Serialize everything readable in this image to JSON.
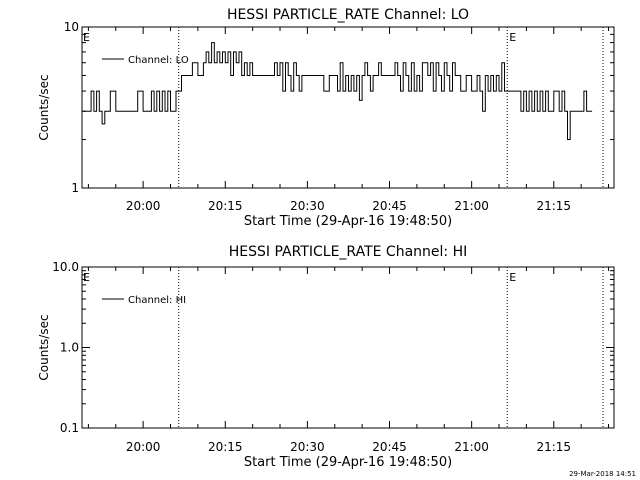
{
  "chart_data": [
    {
      "type": "line",
      "title": "HESSI PARTICLE_RATE Channel: LO",
      "xlabel": "Start Time (29-Apr-16 19:48:50)",
      "ylabel": "Counts/sec",
      "y_scale": "log",
      "ylim": [
        1,
        10
      ],
      "y_ticks": [
        {
          "v": 1,
          "label": "1"
        },
        {
          "v": 10,
          "label": "10"
        }
      ],
      "xlim": [
        "19:48:50",
        "21:26:00"
      ],
      "x_ticks": [
        "20:00",
        "20:15",
        "20:30",
        "20:45",
        "21:00",
        "21:15"
      ],
      "legend": "top-left",
      "markers": [
        {
          "time": "20:06:30",
          "label": ""
        },
        {
          "time": "21:06:30",
          "label": "E"
        },
        {
          "time": "21:24:00",
          "label": ""
        }
      ],
      "left_marker_label": "E",
      "series": [
        {
          "name": "Channel: LO",
          "color": "#000000",
          "times": [
            "19:48:50",
            "19:50:00",
            "19:50:30",
            "19:51:00",
            "19:51:30",
            "19:52:00",
            "19:52:30",
            "19:53:00",
            "19:53:30",
            "19:54:00",
            "19:55:00",
            "19:56:00",
            "19:57:00",
            "19:57:30",
            "19:58:00",
            "19:59:00",
            "20:00:00",
            "20:01:00",
            "20:01:30",
            "20:02:00",
            "20:02:30",
            "20:03:00",
            "20:03:30",
            "20:04:00",
            "20:04:30",
            "20:05:00",
            "20:06:00",
            "20:07:00",
            "20:08:00",
            "20:09:00",
            "20:10:00",
            "20:11:00",
            "20:11:30",
            "20:12:00",
            "20:12:30",
            "20:13:00",
            "20:13:30",
            "20:14:00",
            "20:14:30",
            "20:15:00",
            "20:15:30",
            "20:16:00",
            "20:16:30",
            "20:17:00",
            "20:17:30",
            "20:18:00",
            "20:18:30",
            "20:19:00",
            "20:19:30",
            "20:20:00",
            "20:21:00",
            "20:22:00",
            "20:23:00",
            "20:24:00",
            "20:24:30",
            "20:25:00",
            "20:25:30",
            "20:26:00",
            "20:26:30",
            "20:27:00",
            "20:27:30",
            "20:28:00",
            "20:28:30",
            "20:29:00",
            "20:30:00",
            "20:31:00",
            "20:32:00",
            "20:33:00",
            "20:34:00",
            "20:35:00",
            "20:35:30",
            "20:36:00",
            "20:36:30",
            "20:37:00",
            "20:37:30",
            "20:38:00",
            "20:38:30",
            "20:39:00",
            "20:39:30",
            "20:40:00",
            "20:40:30",
            "20:41:00",
            "20:41:30",
            "20:42:00",
            "20:42:30",
            "20:43:00",
            "20:43:30",
            "20:44:00",
            "20:45:00",
            "20:46:00",
            "20:46:30",
            "20:47:00",
            "20:47:30",
            "20:48:00",
            "20:48:30",
            "20:49:00",
            "20:49:30",
            "20:50:00",
            "20:50:30",
            "20:51:00",
            "20:52:00",
            "20:52:30",
            "20:53:00",
            "20:53:30",
            "20:54:00",
            "20:54:30",
            "20:55:00",
            "20:55:30",
            "20:56:00",
            "20:56:30",
            "20:57:00",
            "20:57:30",
            "20:58:00",
            "20:59:00",
            "21:00:00",
            "21:01:00",
            "21:01:30",
            "21:02:00",
            "21:02:30",
            "21:03:00",
            "21:03:30",
            "21:04:00",
            "21:04:30",
            "21:05:00",
            "21:05:30",
            "21:06:00",
            "21:07:00",
            "21:08:00",
            "21:09:00",
            "21:09:30",
            "21:10:00",
            "21:10:30",
            "21:11:00",
            "21:11:30",
            "21:12:00",
            "21:12:30",
            "21:13:00",
            "21:13:30",
            "21:14:00",
            "21:14:30",
            "21:15:00",
            "21:16:00",
            "21:16:30",
            "21:17:00",
            "21:17:30",
            "21:18:00",
            "21:19:00",
            "21:20:00",
            "21:20:30",
            "21:21:00",
            "21:22:00"
          ],
          "values": [
            3,
            3,
            4,
            3,
            4,
            3,
            2.5,
            3,
            3,
            4,
            3,
            3,
            3,
            3,
            3,
            4,
            3,
            3,
            4,
            3,
            4,
            3,
            4,
            3,
            4,
            3,
            4,
            5,
            5,
            6,
            5,
            6,
            7,
            6,
            8,
            6,
            7,
            6,
            7,
            6,
            7,
            5,
            7,
            6,
            7,
            5,
            6,
            5,
            6,
            5,
            5,
            5,
            5,
            6,
            5,
            6,
            4,
            6,
            5,
            4,
            6,
            5,
            4,
            5,
            5,
            5,
            5,
            4,
            5,
            5,
            4,
            6,
            4,
            5,
            4,
            5,
            4,
            5,
            3.5,
            5,
            6,
            5,
            4,
            5,
            5,
            6,
            5,
            5,
            5,
            6,
            5,
            4,
            6,
            5,
            4,
            6,
            4,
            5,
            4,
            6,
            5,
            6,
            4,
            6,
            5,
            4,
            6,
            5,
            4,
            6,
            5,
            5,
            4,
            5,
            4,
            5,
            4,
            3,
            5,
            4,
            5,
            4,
            5,
            4,
            6,
            4,
            4,
            4,
            3,
            4,
            3,
            4,
            3,
            4,
            3,
            4,
            3,
            4,
            3,
            3,
            4,
            3,
            4,
            3,
            2,
            3,
            3,
            3,
            4,
            3,
            3
          ]
        }
      ]
    },
    {
      "type": "line",
      "title": "HESSI PARTICLE_RATE Channel: HI",
      "xlabel": "Start Time (29-Apr-16 19:48:50)",
      "ylabel": "Counts/sec",
      "y_scale": "log",
      "ylim": [
        0.1,
        10
      ],
      "y_ticks": [
        {
          "v": 0.1,
          "label": "0.1"
        },
        {
          "v": 1,
          "label": "1.0"
        },
        {
          "v": 10,
          "label": "10.0"
        }
      ],
      "xlim": [
        "19:48:50",
        "21:26:00"
      ],
      "x_ticks": [
        "20:00",
        "20:15",
        "20:30",
        "20:45",
        "21:00",
        "21:15"
      ],
      "legend": "top-left",
      "markers": [
        {
          "time": "20:06:30",
          "label": ""
        },
        {
          "time": "21:06:30",
          "label": "E"
        },
        {
          "time": "21:24:00",
          "label": ""
        }
      ],
      "left_marker_label": "E",
      "series": [
        {
          "name": "Channel: HI",
          "color": "#000000",
          "times": [],
          "values": []
        }
      ]
    }
  ],
  "footer": {
    "timestamp": "29-Mar-2018 14:51"
  }
}
